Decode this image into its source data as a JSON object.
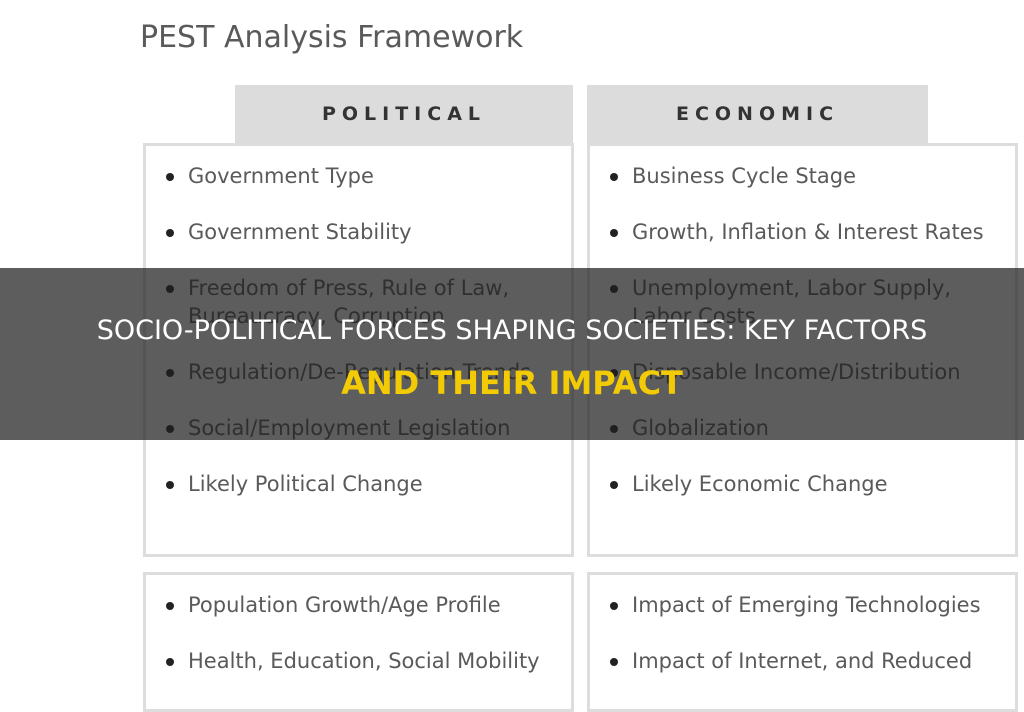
{
  "framework": {
    "title": "PEST Analysis Framework",
    "columns": [
      {
        "heading": "POLITICAL",
        "items": [
          "Government Type",
          "Government Stability",
          "Freedom of Press, Rule of Law, Bureaucracy, Corruption",
          "Regulation/De-Regulation Trends",
          "Social/Employment Legislation",
          "Likely Political Change"
        ]
      },
      {
        "heading": "ECONOMIC",
        "items": [
          "Business Cycle Stage",
          "Growth, Inflation & Interest Rates",
          "Unemployment, Labor Supply, Labor Costs",
          "Disposable Income/Distribution",
          "Globalization",
          "Likely Economic Change"
        ]
      }
    ],
    "bottom": [
      {
        "items": [
          "Population Growth/Age Profile",
          "Health, Education, Social Mobility"
        ]
      },
      {
        "items": [
          "Impact of Emerging Technologies",
          "Impact of Internet, and Reduced"
        ]
      }
    ]
  },
  "banner": {
    "line1": "SOCIO-POLITICAL FORCES SHAPING SOCIETIES: KEY FACTORS",
    "line2": "AND THEIR IMPACT"
  }
}
